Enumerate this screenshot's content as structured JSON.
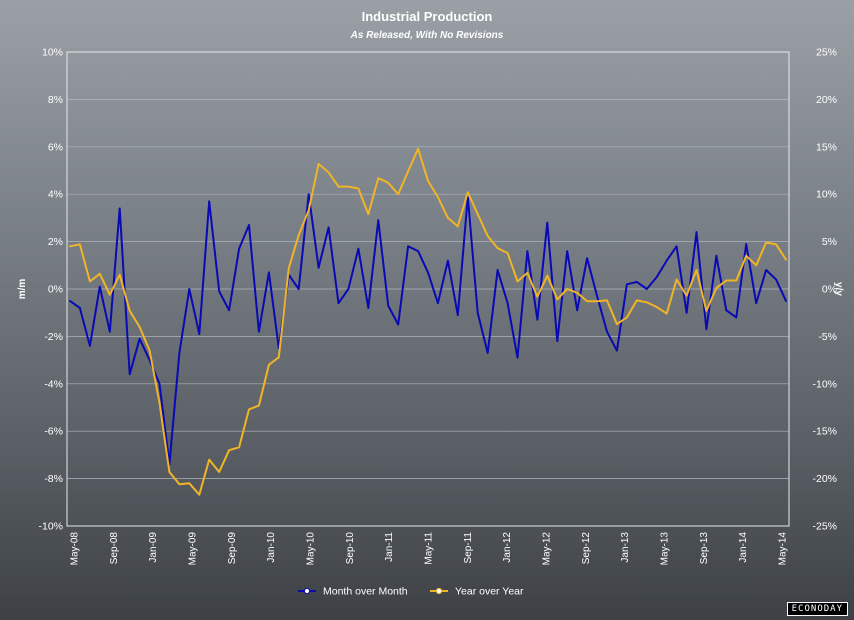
{
  "brand": "ECONODAY",
  "chart_data": {
    "type": "line",
    "title": "Industrial Production",
    "subtitle": "As Released, With No Revisions",
    "ylabel_left": "m/m",
    "ylabel_right": "y/y",
    "ylim_left": [
      -10,
      10
    ],
    "ylim_right": [
      -25,
      25
    ],
    "yticks_left": [
      "10%",
      "8%",
      "6%",
      "4%",
      "2%",
      "0%",
      "-2%",
      "-4%",
      "-6%",
      "-8%",
      "-10%"
    ],
    "yticks_right": [
      "25%",
      "20%",
      "15%",
      "10%",
      "5%",
      "0%",
      "-5%",
      "-10%",
      "-15%",
      "-20%",
      "-25%"
    ],
    "xticks": [
      "May-08",
      "Sep-08",
      "Jan-09",
      "May-09",
      "Sep-09",
      "Jan-10",
      "May-10",
      "Sep-10",
      "Jan-11",
      "May-11",
      "Sep-11",
      "Jan-12",
      "May-12",
      "Sep-12",
      "Jan-13",
      "May-13",
      "Sep-13",
      "Jan-14",
      "May-14"
    ],
    "grid": true,
    "legend_position": "bottom",
    "series": [
      {
        "name": "Month over Month",
        "axis": "left",
        "color": "#0a0ab4",
        "values": [
          -0.5,
          -0.8,
          -2.4,
          0.1,
          -1.8,
          3.4,
          -3.6,
          -2.1,
          -3.0,
          -4.0,
          -7.4,
          -2.7,
          0.0,
          -1.9,
          3.7,
          -0.1,
          -0.9,
          1.7,
          2.7,
          -1.8,
          0.7,
          -2.5,
          0.6,
          0.0,
          4.0,
          0.9,
          2.6,
          -0.6,
          0.0,
          1.7,
          -0.8,
          2.9,
          -0.7,
          -1.5,
          1.8,
          1.6,
          0.7,
          -0.6,
          1.2,
          -1.1,
          3.9,
          -1.0,
          -2.7,
          0.8,
          -0.6,
          -2.9,
          1.6,
          -1.3,
          2.8,
          -2.2,
          1.6,
          -0.9,
          1.3,
          -0.3,
          -1.8,
          -2.6,
          0.2,
          0.3,
          0.0,
          0.5,
          1.2,
          1.8,
          -1.0,
          2.4,
          -1.7,
          1.4,
          -0.9,
          -1.2,
          1.9,
          -0.6,
          0.8,
          0.4,
          -0.5
        ]
      },
      {
        "name": "Year over Year",
        "axis": "right",
        "color": "#f0b428",
        "values": [
          4.5,
          4.7,
          0.8,
          1.6,
          -0.6,
          1.5,
          -2.3,
          -4.0,
          -6.5,
          -12.0,
          -19.3,
          -20.6,
          -20.5,
          -21.7,
          -18.0,
          -19.3,
          -17.0,
          -16.7,
          -12.7,
          -12.3,
          -8.0,
          -7.2,
          2.2,
          5.7,
          8.3,
          13.2,
          12.3,
          10.8,
          10.8,
          10.6,
          7.9,
          11.7,
          11.2,
          10.0,
          12.4,
          14.8,
          11.4,
          9.7,
          7.5,
          6.6,
          10.2,
          7.9,
          5.6,
          4.3,
          3.8,
          0.8,
          1.7,
          -0.8,
          1.4,
          -1.1,
          0.0,
          -0.4,
          -1.3,
          -1.3,
          -1.2,
          -3.7,
          -3.0,
          -1.2,
          -1.4,
          -1.9,
          -2.6,
          1.0,
          -0.7,
          2.0,
          -2.3,
          0.1,
          0.9,
          0.9,
          3.5,
          2.5,
          4.9,
          4.7,
          3.1
        ]
      }
    ]
  }
}
